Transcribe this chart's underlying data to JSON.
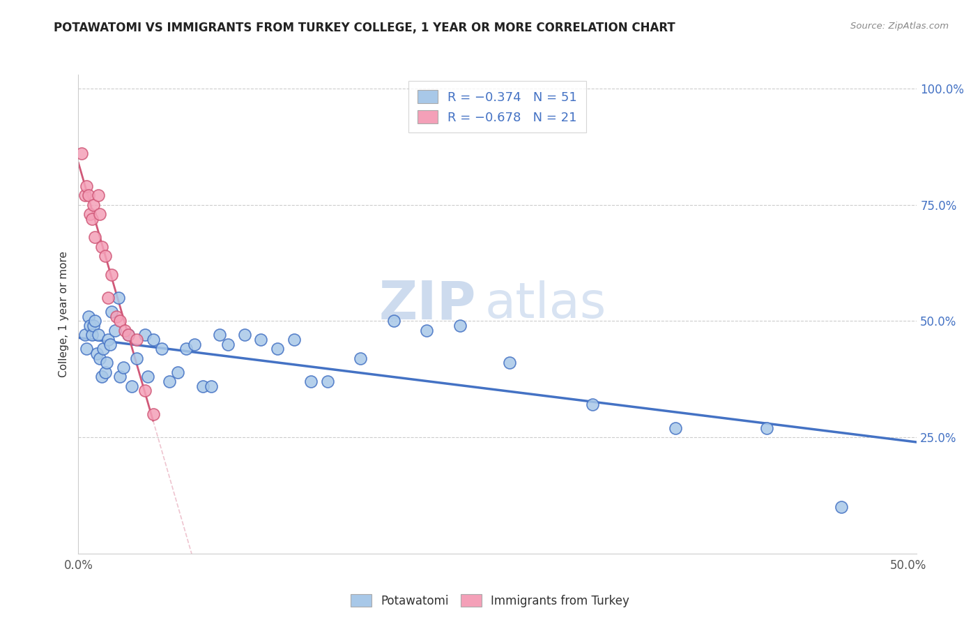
{
  "title": "POTAWATOMI VS IMMIGRANTS FROM TURKEY COLLEGE, 1 YEAR OR MORE CORRELATION CHART",
  "source": "Source: ZipAtlas.com",
  "ylabel": "College, 1 year or more",
  "xlim": [
    0.0,
    0.505
  ],
  "ylim": [
    0.0,
    1.03
  ],
  "legend_label1": "R = −0.374   N = 51",
  "legend_label2": "R = −0.678   N = 21",
  "series1_color": "#a8c8e8",
  "series2_color": "#f4a0b8",
  "line1_color": "#4472c4",
  "line2_color": "#d05878",
  "watermark_zip": "ZIP",
  "watermark_atlas": "atlas",
  "potawatomi_x": [
    0.004,
    0.005,
    0.006,
    0.007,
    0.008,
    0.009,
    0.01,
    0.011,
    0.012,
    0.013,
    0.014,
    0.015,
    0.016,
    0.017,
    0.018,
    0.019,
    0.02,
    0.022,
    0.024,
    0.025,
    0.027,
    0.03,
    0.032,
    0.035,
    0.04,
    0.042,
    0.045,
    0.05,
    0.055,
    0.06,
    0.065,
    0.07,
    0.075,
    0.08,
    0.085,
    0.09,
    0.1,
    0.11,
    0.12,
    0.13,
    0.14,
    0.15,
    0.17,
    0.19,
    0.21,
    0.23,
    0.26,
    0.31,
    0.36,
    0.415,
    0.46
  ],
  "potawatomi_y": [
    0.47,
    0.44,
    0.51,
    0.49,
    0.47,
    0.49,
    0.5,
    0.43,
    0.47,
    0.42,
    0.38,
    0.44,
    0.39,
    0.41,
    0.46,
    0.45,
    0.52,
    0.48,
    0.55,
    0.38,
    0.4,
    0.47,
    0.36,
    0.42,
    0.47,
    0.38,
    0.46,
    0.44,
    0.37,
    0.39,
    0.44,
    0.45,
    0.36,
    0.36,
    0.47,
    0.45,
    0.47,
    0.46,
    0.44,
    0.46,
    0.37,
    0.37,
    0.42,
    0.5,
    0.48,
    0.49,
    0.41,
    0.32,
    0.27,
    0.27,
    0.1
  ],
  "turkey_x": [
    0.002,
    0.004,
    0.005,
    0.006,
    0.007,
    0.008,
    0.009,
    0.01,
    0.012,
    0.013,
    0.014,
    0.016,
    0.018,
    0.02,
    0.023,
    0.025,
    0.028,
    0.03,
    0.035,
    0.04,
    0.045
  ],
  "turkey_y": [
    0.86,
    0.77,
    0.79,
    0.77,
    0.73,
    0.72,
    0.75,
    0.68,
    0.77,
    0.73,
    0.66,
    0.64,
    0.55,
    0.6,
    0.51,
    0.5,
    0.48,
    0.47,
    0.46,
    0.35,
    0.3
  ],
  "background_color": "#ffffff",
  "grid_color": "#cccccc",
  "title_color": "#222222",
  "right_axis_color": "#4472c4"
}
